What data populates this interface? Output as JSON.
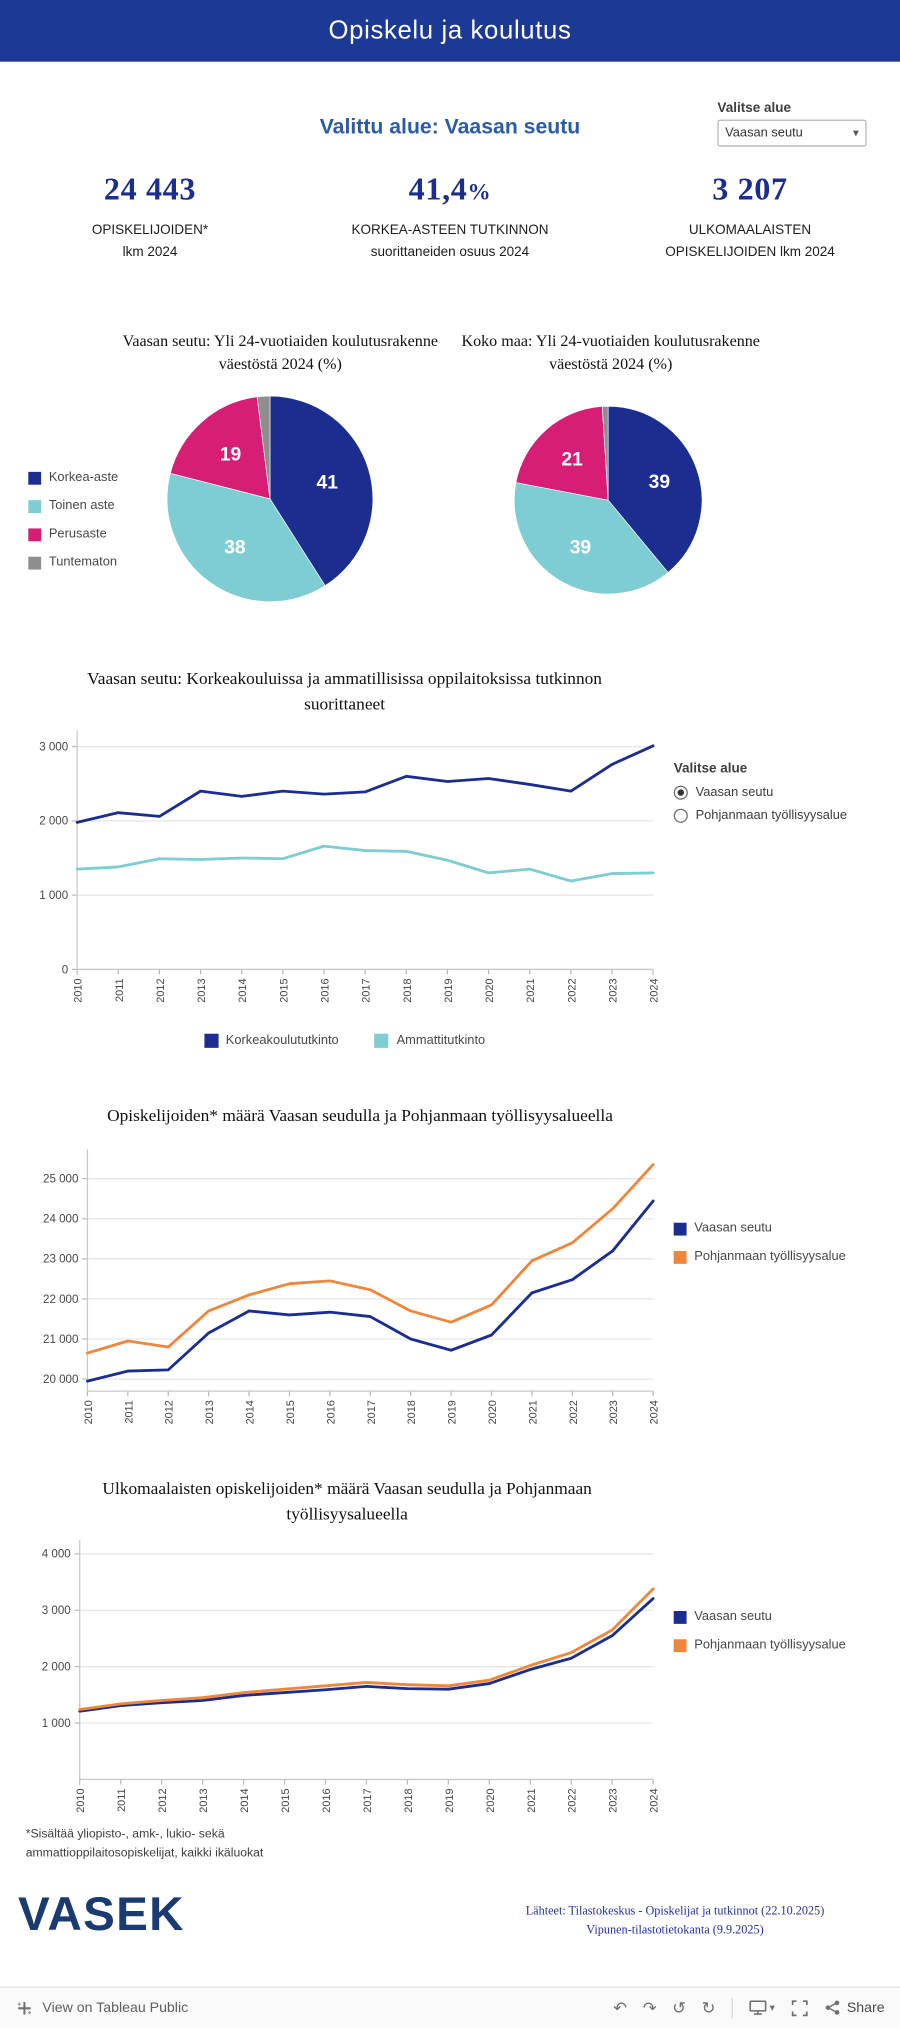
{
  "page": {
    "title": "Opiskelu ja koulutus"
  },
  "area_filter": {
    "label": "Valitse alue",
    "value": "Vaasan seutu"
  },
  "selected_area_text": "Valittu alue: Vaasan seutu",
  "kpis": [
    {
      "value": "24 443",
      "suffix": "",
      "label_line1": "OPISKELIJOIDEN*",
      "label_line2": "lkm 2024"
    },
    {
      "value": "41,4",
      "suffix": "%",
      "label_line1": "KORKEA-ASTEEN TUTKINNON",
      "label_line2": "suorittaneiden osuus 2024"
    },
    {
      "value": "3 207",
      "suffix": "",
      "label_line1": "ULKOMAALAISTEN",
      "label_line2": "OPISKELIJOIDEN lkm 2024"
    }
  ],
  "icons": {
    "chevron_down": "▾",
    "undo": "↶",
    "redo": "↷",
    "reset": "↺",
    "refresh": "↻"
  },
  "colors": {
    "navy": "#1b2d8f",
    "teal": "#7dcdd2",
    "magenta": "#d81d76",
    "gray": "#8e8e8e",
    "orange": "#f0863c",
    "header": "#1c3996"
  },
  "chart_data": [
    {
      "type": "pie",
      "title": "Vaasan seutu: Yli 24-vuotiaiden koulutusrakenne väestöstä 2024 (%)",
      "title_lines": [
        "Vaasan seutu: Yli 24-vuotiaiden koulutusrakenne",
        "väestöstä 2024 (%)"
      ],
      "labels": [
        "Korkea-aste",
        "Toinen aste",
        "Perusaste",
        "Tuntematon"
      ],
      "values": [
        41,
        38,
        19,
        2
      ],
      "colors": [
        "#1b2d8f",
        "#7dcdd2",
        "#d81d76",
        "#8e8e8e"
      ],
      "show_labels": [
        true,
        true,
        true,
        false
      ]
    },
    {
      "type": "pie",
      "title": "Koko maa: Yli 24-vuotiaiden koulutusrakenne väestöstä 2024 (%)",
      "title_lines": [
        "Koko maa: Yli 24-vuotiaiden koulutusrakenne",
        "väestöstä 2024 (%)"
      ],
      "labels": [
        "Korkea-aste",
        "Toinen aste",
        "Perusaste",
        "Tuntematon"
      ],
      "values": [
        39,
        39,
        21,
        1
      ],
      "colors": [
        "#1b2d8f",
        "#7dcdd2",
        "#d81d76",
        "#8e8e8e"
      ],
      "show_labels": [
        true,
        true,
        true,
        false
      ]
    },
    {
      "type": "line",
      "title": "Vaasan seutu: Korkeakouluissa ja ammatillisissa oppilaitoksissa tutkinnon suorittaneet",
      "title_lines": [
        "Vaasan seutu: Korkeakouluissa ja ammatillisissa oppilaitoksissa tutkinnon",
        "suorittaneet"
      ],
      "x": [
        "2010",
        "2011",
        "2012",
        "2013",
        "2014",
        "2015",
        "2016",
        "2017",
        "2018",
        "2019",
        "2020",
        "2021",
        "2022",
        "2023",
        "2024"
      ],
      "series": [
        {
          "name": "Korkeakoulututkinto",
          "color": "#1b2d8f",
          "values": [
            1980,
            2110,
            2060,
            2400,
            2330,
            2400,
            2360,
            2390,
            2600,
            2530,
            2570,
            2490,
            2400,
            2760,
            3010
          ]
        },
        {
          "name": "Ammattitutkinto",
          "color": "#7dcdd2",
          "values": [
            1350,
            1380,
            1490,
            1480,
            1500,
            1490,
            1660,
            1600,
            1590,
            1470,
            1300,
            1350,
            1190,
            1290,
            1300
          ]
        }
      ],
      "ylim": [
        0,
        3150
      ],
      "yticks": [
        0,
        1000,
        2000,
        3000
      ],
      "ytick_labels": [
        "0",
        "1 000",
        "2 000",
        "3 000"
      ],
      "grid": true,
      "legend_position": "bottom"
    },
    {
      "type": "line",
      "title": "Opiskelijoiden* määrä Vaasan seudulla ja Pohjanmaan työllisyysalueella",
      "title_lines": [
        "Opiskelijoiden* määrä Vaasan seudulla ja Pohjanmaan työllisyysalueella"
      ],
      "x": [
        "2010",
        "2011",
        "2012",
        "2013",
        "2014",
        "2015",
        "2016",
        "2017",
        "2018",
        "2019",
        "2020",
        "2021",
        "2022",
        "2023",
        "2024"
      ],
      "series": [
        {
          "name": "Vaasan seutu",
          "color": "#1b2d8f",
          "values": [
            19950,
            20200,
            20230,
            21150,
            21700,
            21600,
            21670,
            21560,
            21000,
            20720,
            21100,
            22150,
            22480,
            23200,
            24443
          ]
        },
        {
          "name": "Pohjanmaan työllisyysalue",
          "color": "#f0863c",
          "values": [
            20650,
            20950,
            20800,
            21700,
            22100,
            22380,
            22450,
            22230,
            21700,
            21420,
            21850,
            22950,
            23400,
            24250,
            25350
          ]
        }
      ],
      "ylim": [
        19700,
        25600
      ],
      "yticks": [
        20000,
        21000,
        22000,
        23000,
        24000,
        25000
      ],
      "ytick_labels": [
        "20 000",
        "21 000",
        "22 000",
        "23 000",
        "24 000",
        "25 000"
      ],
      "grid": true,
      "legend_position": "right"
    },
    {
      "type": "line",
      "title": "Ulkomaalaisten opiskelijoiden* määrä Vaasan seudulla ja Pohjanmaan työllisyysalueella",
      "title_lines": [
        "Ulkomaalaisten opiskelijoiden* määrä Vaasan seudulla ja Pohjanmaan",
        "työllisyysalueella"
      ],
      "x": [
        "2010",
        "2011",
        "2012",
        "2013",
        "2014",
        "2015",
        "2016",
        "2017",
        "2018",
        "2019",
        "2020",
        "2021",
        "2022",
        "2023",
        "2024"
      ],
      "series": [
        {
          "name": "Vaasan seutu",
          "color": "#1b2d8f",
          "values": [
            1210,
            1310,
            1360,
            1400,
            1490,
            1540,
            1590,
            1650,
            1610,
            1600,
            1700,
            1950,
            2150,
            2550,
            3207
          ]
        },
        {
          "name": "Pohjanmaan työllisyysalue",
          "color": "#f0863c",
          "values": [
            1240,
            1340,
            1400,
            1450,
            1540,
            1600,
            1660,
            1720,
            1680,
            1660,
            1760,
            2020,
            2250,
            2650,
            3380
          ]
        }
      ],
      "ylim": [
        0,
        4150
      ],
      "yticks": [
        1000,
        2000,
        3000,
        4000
      ],
      "ytick_labels": [
        "1 000",
        "2 000",
        "3 000",
        "4 000"
      ],
      "grid": true,
      "legend_position": "right"
    }
  ],
  "line1_controls": {
    "label": "Valitse alue",
    "options": [
      {
        "label": "Vaasan seutu",
        "selected": true
      },
      {
        "label": "Pohjanmaan työllisyysalue",
        "selected": false
      }
    ]
  },
  "footnote": {
    "line1": "*Sisältää yliopisto-, amk-, lukio- sekä",
    "line2": "ammattioppilaitosopiskelijat, kaikki ikäluokat"
  },
  "logo": {
    "text": "VASEK"
  },
  "sources": {
    "line1": "Lähteet: Tilastokeskus - Opiskelijat ja tutkinnot (22.10.2025)",
    "line2": "Vipunen-tilastotietokanta  (9.9.2025)"
  },
  "toolbar": {
    "view_on_text": "View on Tableau Public",
    "share_label": "Share"
  }
}
